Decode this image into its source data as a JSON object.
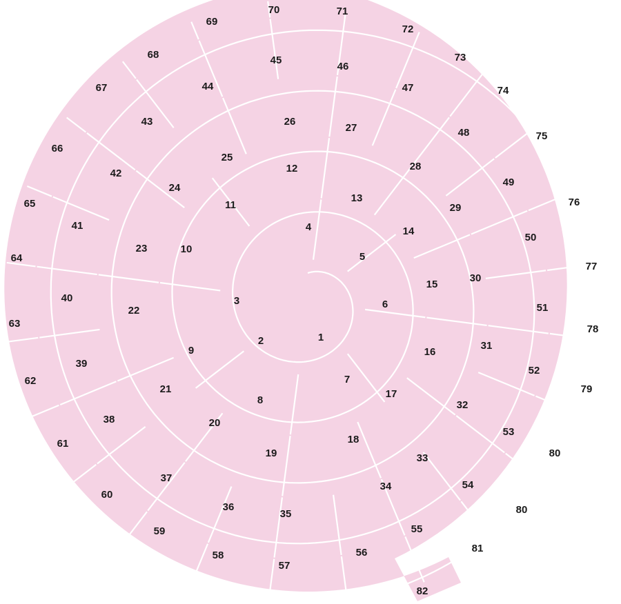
{
  "pieces": [
    "1",
    "2",
    "3",
    "4",
    "5",
    "6",
    "7",
    "8",
    "9",
    "10",
    "11",
    "12",
    "13",
    "14",
    "15",
    "16",
    "17",
    "18",
    "19",
    "20",
    "21",
    "22",
    "23",
    "24",
    "25",
    "26",
    "27",
    "28",
    "29",
    "30",
    "31",
    "32",
    "33",
    "34",
    "35",
    "36",
    "37",
    "38",
    "39",
    "40",
    "41",
    "42",
    "43",
    "44",
    "45",
    "46",
    "47",
    "48",
    "49",
    "50",
    "51",
    "52",
    "53",
    "54",
    "55",
    "56",
    "57",
    "58",
    "59",
    "60",
    "61",
    "62",
    "63",
    "64",
    "65",
    "66",
    "67",
    "68",
    "69",
    "70",
    "71",
    "72",
    "73",
    "74",
    "75",
    "76",
    "77",
    "78",
    "79",
    "80",
    "80",
    "81",
    "82"
  ]
}
